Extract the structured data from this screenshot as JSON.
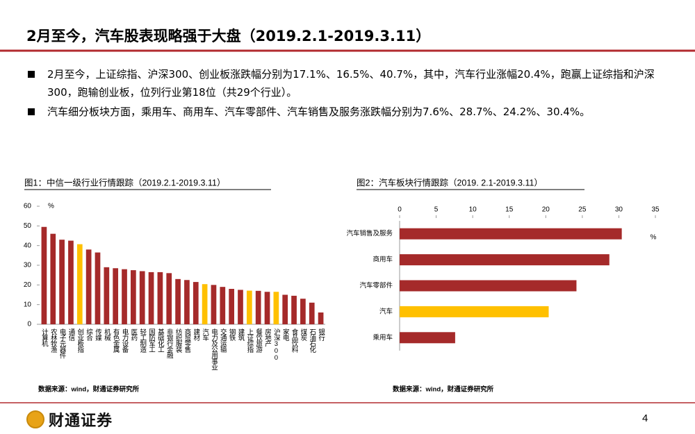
{
  "header": {
    "title": "2月至今，汽车股表现略强于大盘（2019.2.1-2019.3.11）"
  },
  "bullets": [
    "2月至今，上证综指、沪深300、创业板涨跌幅分别为17.1%、16.5%、40.7%，其中，汽车行业涨幅20.4%，跑赢上证综指和沪深300，跑输创业板，位列行业第18位（共29个行业）。",
    "汽车细分板块方面，乘用车、商用车、汽车零部件、汽车销售及服务涨跌幅分别为7.6%、28.7%、24.2%、30.4%。"
  ],
  "chart_data": [
    {
      "type": "bar",
      "title": "图1：中信一级行业行情跟踪（2019.2.1-2019.3.11）",
      "unit": "%",
      "categories": [
        "计算机",
        "农林牧渔",
        "电子元器件",
        "通信",
        "创业板指",
        "综合",
        "传媒",
        "机械",
        "有色金属",
        "电力设备",
        "医药",
        "轻工制造",
        "国防军工",
        "基础化工",
        "非银行金融",
        "纺织服装",
        "商贸零售",
        "建材",
        "汽车",
        "电力及公用事业",
        "交通运输",
        "钢铁",
        "建筑",
        "上证综指",
        "餐饮旅游",
        "房地产",
        "沪深300",
        "家电",
        "食品饮料",
        "煤炭",
        "石油石化",
        "银行"
      ],
      "values": [
        49.5,
        46,
        43,
        42.5,
        40.7,
        38,
        36.5,
        29,
        28.5,
        28,
        27.5,
        27,
        26.5,
        26.5,
        26,
        23,
        22.5,
        21.5,
        20.4,
        20,
        19,
        18,
        17.5,
        17.1,
        17,
        16.5,
        16.5,
        15,
        14.5,
        13,
        11,
        6
      ],
      "colors": [
        "#a52a2a",
        "#a52a2a",
        "#a52a2a",
        "#a52a2a",
        "#ffc000",
        "#a52a2a",
        "#a52a2a",
        "#a52a2a",
        "#a52a2a",
        "#a52a2a",
        "#a52a2a",
        "#a52a2a",
        "#a52a2a",
        "#a52a2a",
        "#a52a2a",
        "#a52a2a",
        "#a52a2a",
        "#a52a2a",
        "#ffc000",
        "#a52a2a",
        "#a52a2a",
        "#a52a2a",
        "#a52a2a",
        "#ffc000",
        "#a52a2a",
        "#a52a2a",
        "#ffc000",
        "#a52a2a",
        "#a52a2a",
        "#a52a2a",
        "#a52a2a",
        "#a52a2a"
      ],
      "ylim": [
        0,
        60
      ],
      "yticks": [
        0,
        10,
        20,
        30,
        40,
        50,
        60
      ],
      "source": "数据来源：wind，财通证券研究所"
    },
    {
      "type": "barh",
      "title": "图2：汽车板块行情跟踪（2019. 2.1-2019.3.11）",
      "unit": "%",
      "categories": [
        "汽车销售及服务",
        "商用车",
        "汽车零部件",
        "汽车",
        "乘用车"
      ],
      "values": [
        30.4,
        28.7,
        24.2,
        20.4,
        7.6
      ],
      "colors": [
        "#a52a2a",
        "#a52a2a",
        "#a52a2a",
        "#ffc000",
        "#a52a2a"
      ],
      "xlim": [
        0,
        35
      ],
      "xticks": [
        0,
        5,
        10,
        15,
        20,
        25,
        30,
        35
      ],
      "source": "数据来源：wind，财通证券研究所"
    }
  ],
  "footer": {
    "logo": "财通证券",
    "page": "4"
  }
}
